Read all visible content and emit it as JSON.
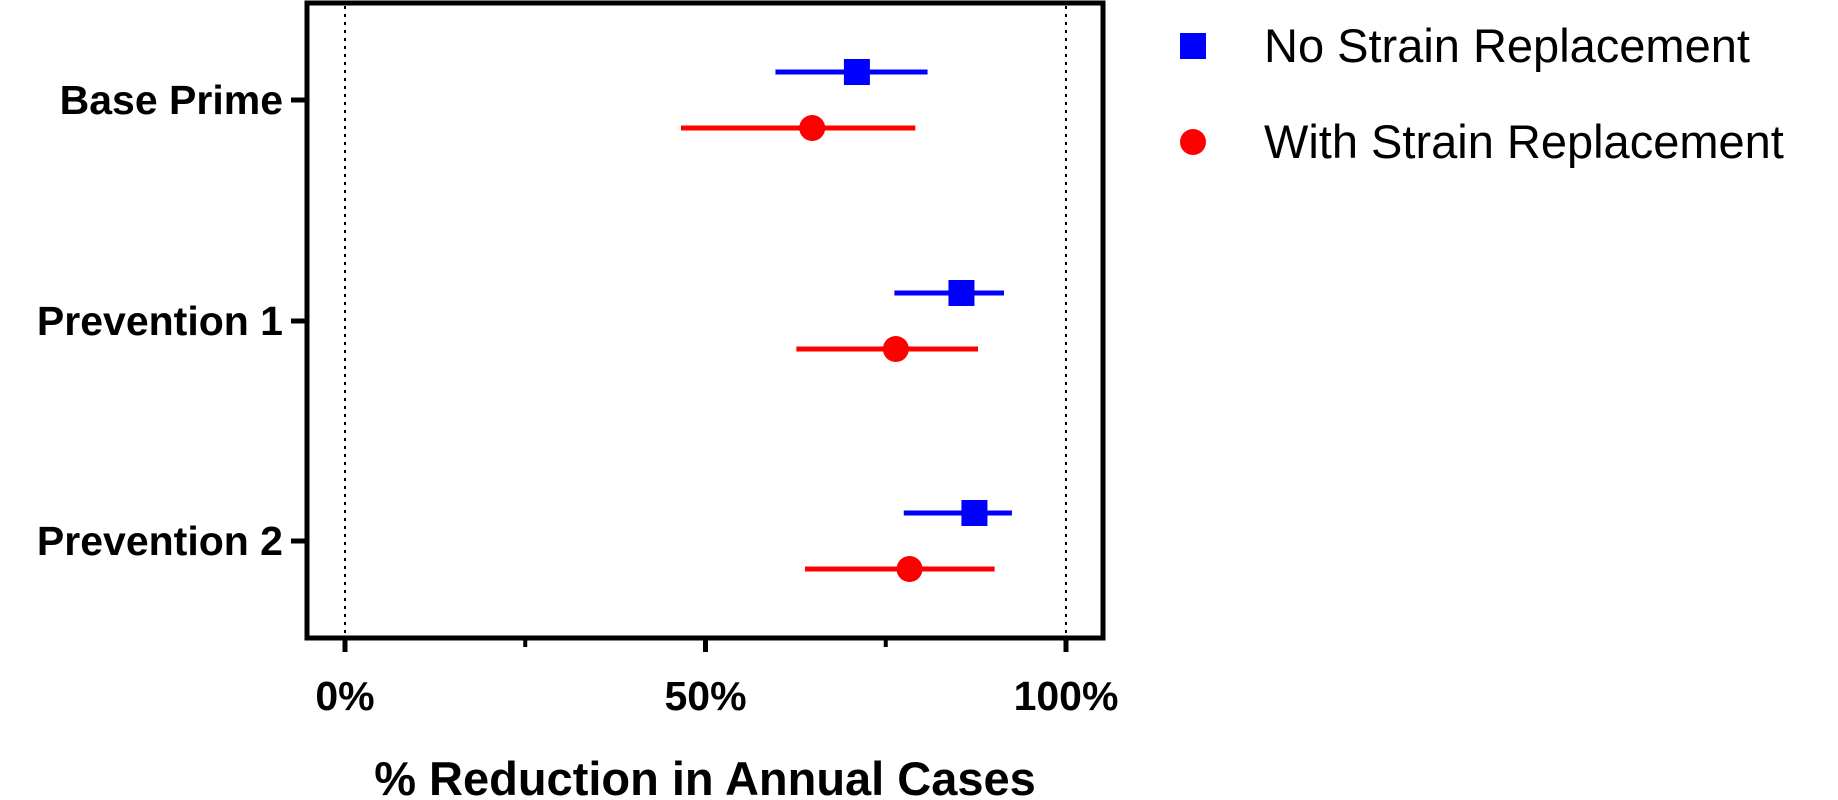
{
  "chart_data": {
    "type": "scatter",
    "subtype": "forest-plot",
    "title": "",
    "xlabel": "% Reduction in Annual Cases",
    "ylabel": "",
    "xlim": [
      -5,
      105
    ],
    "x_ticks": [
      0,
      50,
      100
    ],
    "x_tick_labels": [
      "0%",
      "50%",
      "100%"
    ],
    "x_minor_ticks": [
      25,
      75
    ],
    "reference_lines": [
      0,
      100
    ],
    "grid": false,
    "legend_position": "top-right, outside plot",
    "categories": [
      "Base Prime",
      "Prevention 1",
      "Prevention 2"
    ],
    "series": [
      {
        "name": "No Strain Replacement",
        "color": "#0000FF",
        "marker": "square",
        "values": [
          71,
          85.5,
          87.3
        ],
        "ci_low": [
          59.7,
          76.2,
          77.5
        ],
        "ci_high": [
          80.8,
          91.4,
          92.5
        ]
      },
      {
        "name": "With Strain Replacement",
        "color": "#FF0000",
        "marker": "circle",
        "values": [
          64.8,
          76.4,
          78.3
        ],
        "ci_low": [
          46.6,
          62.6,
          63.8
        ],
        "ci_high": [
          79.1,
          87.8,
          90.1
        ]
      }
    ]
  }
}
